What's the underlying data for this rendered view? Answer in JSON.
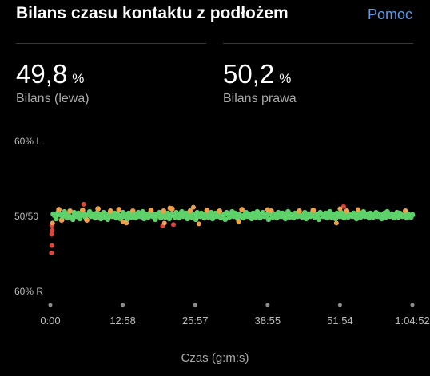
{
  "header": {
    "title": "Bilans czasu kontaktu z podłożem",
    "help_label": "Pomoc"
  },
  "stats": {
    "left": {
      "value": "49,8",
      "unit": "%",
      "label": "Bilans (lewa)"
    },
    "right": {
      "value": "50,2",
      "unit": "%",
      "label": "Bilans prawa"
    }
  },
  "chart_data": {
    "type": "scatter",
    "xlabel": "Czas (g:m:s)",
    "x_ticks": [
      "0:00",
      "12:58",
      "25:57",
      "38:55",
      "51:54",
      "1:04:52"
    ],
    "y_ticks": [
      "60% L",
      "50/50",
      "60% R"
    ],
    "ylim": [
      40,
      60
    ],
    "x_range_seconds": [
      0,
      3892
    ],
    "colors": {
      "balanced": "#5ed16a",
      "slightly_off": "#f0a04a",
      "off": "#e0453a"
    },
    "series": [
      {
        "values": [
          [
            50.2,
            50.0,
            49.6,
            50.3,
            50.8,
            50.1,
            49.4,
            49.9,
            50.5,
            50.2,
            49.7,
            50.0,
            50.6,
            49.8,
            49.5,
            50.4,
            50.1,
            49.9,
            50.3,
            49.6,
            50.0,
            50.7,
            50.2,
            49.8,
            49.4,
            50.1,
            50.5,
            49.9,
            50.2,
            50.0,
            49.7,
            50.3,
            50.9,
            50.1,
            49.6,
            50.0,
            50.4,
            49.8,
            50.2,
            49.5,
            50.1,
            50.6,
            49.9,
            50.0,
            50.3,
            49.7,
            50.2,
            50.8,
            49.6,
            50.0,
            50.4,
            49.9,
            50.1,
            49.5,
            50.3,
            50.0,
            49.8,
            50.6,
            50.2,
            49.7,
            50.1,
            50.4,
            49.9,
            50.0,
            50.5,
            49.6,
            50.2,
            50.0,
            49.8,
            50.3,
            50.7,
            49.9,
            50.1,
            49.5,
            50.2,
            50.0,
            50.4,
            49.7,
            50.1,
            50.6,
            49.8,
            50.0,
            50.3,
            49.6,
            50.2,
            50.9,
            50.0,
            49.8,
            50.4,
            50.1,
            49.7,
            50.2,
            50.5,
            49.9,
            50.0,
            50.3,
            49.6,
            50.1,
            50.6,
            49.8,
            50.2,
            50.0,
            49.5,
            50.4,
            50.1,
            49.9,
            50.3,
            50.0,
            49.7,
            50.2,
            50.7,
            49.8,
            50.1,
            50.4,
            49.6,
            50.0,
            50.3,
            49.9,
            50.2,
            50.6,
            49.7,
            50.0,
            50.1,
            49.5,
            50.4,
            50.2,
            49.8,
            50.0,
            50.5,
            49.9,
            50.3,
            50.1,
            49.6,
            50.2,
            50.0,
            50.8,
            49.7,
            50.1,
            50.4,
            49.9,
            50.2,
            50.0,
            49.6,
            50.3,
            50.1,
            49.8,
            50.5,
            50.0,
            49.7,
            50.2,
            50.4,
            49.9,
            50.1,
            50.0,
            49.5,
            50.3,
            50.6,
            49.8,
            50.2,
            50.0,
            49.7,
            50.4,
            50.1,
            49.9,
            50.3,
            50.0,
            49.6,
            50.2,
            50.5,
            49.8,
            50.1,
            50.0,
            49.7,
            50.3,
            50.2,
            49.9,
            50.6,
            50.0,
            49.8,
            50.1,
            50.4,
            49.6,
            50.2,
            50.0,
            49.9,
            50.3,
            50.7,
            49.8,
            50.1,
            50.0,
            49.5,
            50.4,
            50.2,
            49.9,
            50.0,
            50.3,
            49.7,
            50.1,
            50.5,
            49.8,
            50.2,
            50.0,
            49.6,
            50.3,
            50.1,
            49.9,
            50.4,
            50.0,
            49.7,
            50.2,
            50.6,
            49.8,
            50.1,
            50.0,
            49.9,
            50.3,
            50.2,
            49.6,
            50.0,
            50.4,
            49.8,
            50.1,
            50.5,
            49.9,
            50.0,
            50.2,
            49.7,
            50.3,
            50.1,
            49.8,
            50.0,
            50.4,
            49.9,
            50.2,
            50.0,
            49.6,
            50.1,
            50.3,
            49.8,
            50.5,
            50.0,
            49.9,
            50.2,
            50.1,
            49.7,
            50.0,
            50.4,
            49.8,
            50.3,
            50.1,
            49.9,
            50.0,
            50.6,
            49.7,
            50.2,
            50.0,
            49.8,
            50.1
          ]
        ]
      }
    ],
    "outliers": [
      [
        0.3,
        45.0
      ],
      [
        0.4,
        46.0
      ],
      [
        0.35,
        47.5
      ],
      [
        0.5,
        48.0
      ],
      [
        0.45,
        48.7
      ],
      [
        0.6,
        49.0
      ],
      [
        9.2,
        51.5
      ],
      [
        81.0,
        51.2
      ],
      [
        31.0,
        48.6
      ],
      [
        31.5,
        49.0
      ],
      [
        33.0,
        51.0
      ],
      [
        34.0,
        48.8
      ],
      [
        39.5,
        51.1
      ],
      [
        41.0,
        48.9
      ],
      [
        20.0,
        49.2
      ],
      [
        21.0,
        49.0
      ],
      [
        52.0,
        49.2
      ],
      [
        60.0,
        50.8
      ],
      [
        79.0,
        49.0
      ],
      [
        80.0,
        50.9
      ],
      [
        85.0,
        50.8
      ]
    ]
  }
}
